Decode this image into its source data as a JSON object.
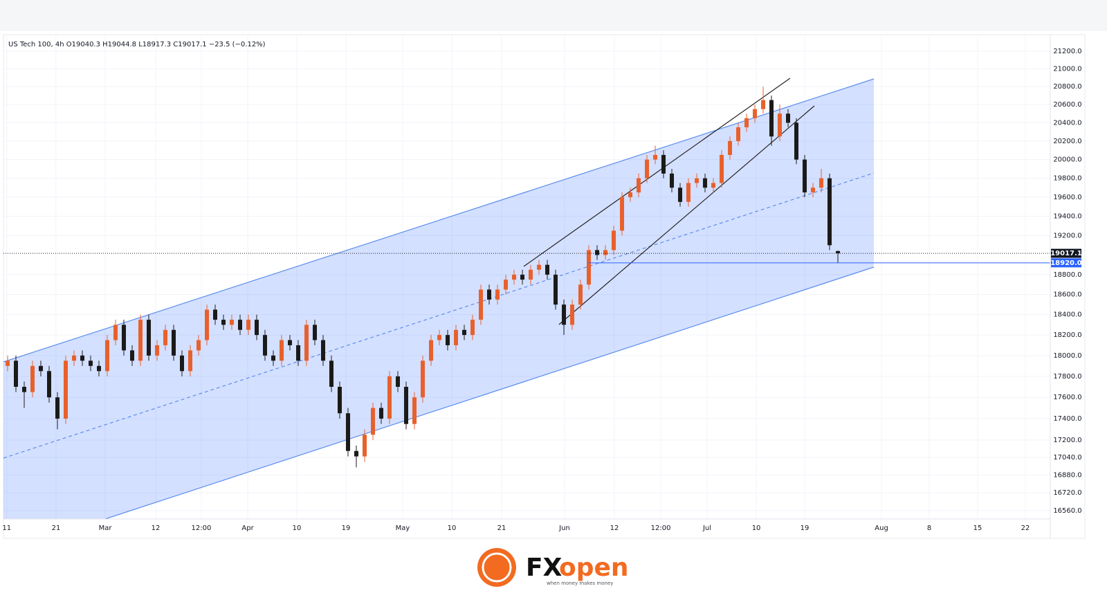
{
  "chart_data": {
    "type": "candlestick",
    "title": "US Tech 100, 4h  O19040.3  H19044.8  L18917.3  C19017.1  −23.5 (−0.12%)",
    "log_scale": true,
    "grid": true,
    "up_color": "#e8602c",
    "down_color": "#1a1a1a",
    "ylim": [
      16486,
      21390
    ],
    "yticks": [
      {
        "value": 16560,
        "label": "16560.0"
      },
      {
        "value": 16720,
        "label": "16720.0"
      },
      {
        "value": 16880,
        "label": "16880.0"
      },
      {
        "value": 17040,
        "label": "17040.0"
      },
      {
        "value": 17200,
        "label": "17200.0"
      },
      {
        "value": 17400,
        "label": "17400.0"
      },
      {
        "value": 17600,
        "label": "17600.0"
      },
      {
        "value": 17800,
        "label": "17800.0"
      },
      {
        "value": 18000,
        "label": "18000.0"
      },
      {
        "value": 18200,
        "label": "18200.0"
      },
      {
        "value": 18400,
        "label": "18400.0"
      },
      {
        "value": 18600,
        "label": "18600.0"
      },
      {
        "value": 18800,
        "label": "18800.0"
      },
      {
        "value": 19200,
        "label": "19200.0"
      },
      {
        "value": 19400,
        "label": "19400.0"
      },
      {
        "value": 19600,
        "label": "19600.0"
      },
      {
        "value": 19800,
        "label": "19800.0"
      },
      {
        "value": 20000,
        "label": "20000.0"
      },
      {
        "value": 20200,
        "label": "20200.0"
      },
      {
        "value": 20400,
        "label": "20400.0"
      },
      {
        "value": 20600,
        "label": "20600.0"
      },
      {
        "value": 20800,
        "label": "20800.0"
      },
      {
        "value": 21000,
        "label": "21000.0"
      },
      {
        "value": 21200,
        "label": "21200.0"
      }
    ],
    "xlim": [
      -0.5,
      125.58
    ],
    "xticks": [
      {
        "value": -0.1,
        "label": "11"
      },
      {
        "value": 5.83,
        "label": "21"
      },
      {
        "value": 11.75,
        "label": "Mar"
      },
      {
        "value": 17.83,
        "label": "12"
      },
      {
        "value": 23.33,
        "label": "12:00"
      },
      {
        "value": 28.92,
        "label": "Apr"
      },
      {
        "value": 34.83,
        "label": "10"
      },
      {
        "value": 40.75,
        "label": "19"
      },
      {
        "value": 47.58,
        "label": "May"
      },
      {
        "value": 53.5,
        "label": "10"
      },
      {
        "value": 59.5,
        "label": "21"
      },
      {
        "value": 67.08,
        "label": "Jun"
      },
      {
        "value": 73.08,
        "label": "12"
      },
      {
        "value": 78.67,
        "label": "12:00"
      },
      {
        "value": 84.25,
        "label": "Jul"
      },
      {
        "value": 90.17,
        "label": "10"
      },
      {
        "value": 96,
        "label": "19"
      },
      {
        "value": 105.25,
        "label": "Aug"
      },
      {
        "value": 111,
        "label": "8"
      },
      {
        "value": 116.83,
        "label": "15"
      },
      {
        "value": 122.58,
        "label": "22"
      }
    ],
    "price_tags": [
      {
        "value": 19017.1,
        "label": "19017.1",
        "color": "#131722",
        "style": "dotted"
      },
      {
        "value": 18920,
        "label": "18920.0",
        "color": "#2962ff",
        "style": "solid"
      }
    ],
    "open": [
      17900,
      17950,
      17700,
      17650,
      17900,
      17850,
      17600,
      17400,
      17950,
      18000,
      17950,
      17900,
      17850,
      18150,
      18300,
      18050,
      17950,
      18350,
      18000,
      18100,
      18250,
      18000,
      17850,
      18050,
      18150,
      18450,
      18350,
      18300,
      18350,
      18250,
      18350,
      18200,
      18000,
      17950,
      18150,
      18100,
      17950,
      18300,
      18150,
      17950,
      17700,
      17450,
      17100,
      17050,
      17250,
      17500,
      17400,
      17800,
      17700,
      17350,
      17600,
      17950,
      18150,
      18200,
      18100,
      18250,
      18200,
      18350,
      18650,
      18550,
      18650,
      18750,
      18800,
      18750,
      18850,
      18900,
      18800,
      18500,
      18300,
      18500,
      18700,
      19050,
      19000,
      19050,
      19250,
      19600,
      19650,
      19800,
      20000,
      20050,
      19850,
      19700,
      19550,
      19750,
      19800,
      19700,
      19750,
      20050,
      20200,
      20350,
      20450,
      20550,
      20650,
      20250,
      20500,
      20400,
      20000,
      19650,
      19700,
      19800,
      19040.3
    ],
    "high": [
      18000,
      18000,
      17750,
      17950,
      17950,
      17900,
      17650,
      18000,
      18050,
      18050,
      18000,
      17950,
      18200,
      18350,
      18350,
      18100,
      18400,
      18400,
      18150,
      18300,
      18300,
      18050,
      18100,
      18200,
      18500,
      18500,
      18400,
      18400,
      18400,
      18400,
      18400,
      18250,
      18050,
      18200,
      18200,
      18150,
      18350,
      18350,
      18200,
      18000,
      17750,
      17500,
      17150,
      17300,
      17550,
      17550,
      17850,
      17850,
      17750,
      17650,
      18000,
      18200,
      18250,
      18250,
      18300,
      18300,
      18400,
      18700,
      18700,
      18700,
      18800,
      18850,
      18850,
      18900,
      18950,
      18950,
      18850,
      18550,
      18550,
      18750,
      19100,
      19100,
      19100,
      19300,
      19650,
      19700,
      19850,
      20050,
      20150,
      20100,
      19900,
      19750,
      19800,
      19850,
      19850,
      19800,
      20100,
      20250,
      20400,
      20500,
      20600,
      20800,
      20700,
      20600,
      20550,
      20450,
      20050,
      19750,
      19900,
      19850,
      19044.8
    ],
    "low": [
      17850,
      17650,
      17500,
      17600,
      17800,
      17550,
      17300,
      17350,
      17900,
      17900,
      17850,
      17800,
      17800,
      18100,
      18000,
      17900,
      17900,
      17950,
      17950,
      18050,
      17950,
      17800,
      17800,
      18000,
      18100,
      18300,
      18250,
      18250,
      18200,
      18200,
      18150,
      17950,
      17900,
      17900,
      18050,
      17900,
      17900,
      18100,
      17900,
      17650,
      17400,
      17050,
      16950,
      17000,
      17200,
      17350,
      17350,
      17650,
      17300,
      17300,
      17550,
      17900,
      18100,
      18050,
      18050,
      18150,
      18150,
      18300,
      18500,
      18500,
      18600,
      18700,
      18700,
      18700,
      18800,
      18750,
      18450,
      18200,
      18250,
      18450,
      18650,
      18950,
      18950,
      19000,
      19200,
      19550,
      19600,
      19750,
      19950,
      19800,
      19650,
      19500,
      19500,
      19700,
      19650,
      19650,
      19700,
      20000,
      20150,
      20300,
      20400,
      20500,
      20150,
      20200,
      20350,
      19950,
      19600,
      19600,
      19650,
      19050,
      18917.3
    ],
    "close": [
      17950,
      17700,
      17650,
      17900,
      17850,
      17600,
      17400,
      17950,
      18000,
      17950,
      17900,
      17850,
      18150,
      18300,
      18050,
      17950,
      18350,
      18000,
      18100,
      18250,
      18000,
      17850,
      18050,
      18150,
      18450,
      18350,
      18300,
      18350,
      18250,
      18350,
      18200,
      18000,
      17950,
      18150,
      18100,
      17950,
      18300,
      18150,
      17950,
      17700,
      17450,
      17100,
      17050,
      17250,
      17500,
      17400,
      17800,
      17700,
      17350,
      17600,
      17950,
      18150,
      18200,
      18100,
      18250,
      18200,
      18350,
      18650,
      18550,
      18650,
      18750,
      18800,
      18750,
      18850,
      18900,
      18800,
      18500,
      18300,
      18500,
      18700,
      19050,
      19000,
      19050,
      19250,
      19600,
      19650,
      19800,
      20000,
      20050,
      19850,
      19700,
      19550,
      19750,
      19800,
      19700,
      19750,
      20050,
      20200,
      20350,
      20450,
      20550,
      20650,
      20250,
      20500,
      20400,
      20000,
      19650,
      19700,
      19800,
      19100,
      19017.1
    ]
  },
  "logo": {
    "brand_fx": "FX",
    "brand_open": "open",
    "tagline": "when money makes money"
  }
}
